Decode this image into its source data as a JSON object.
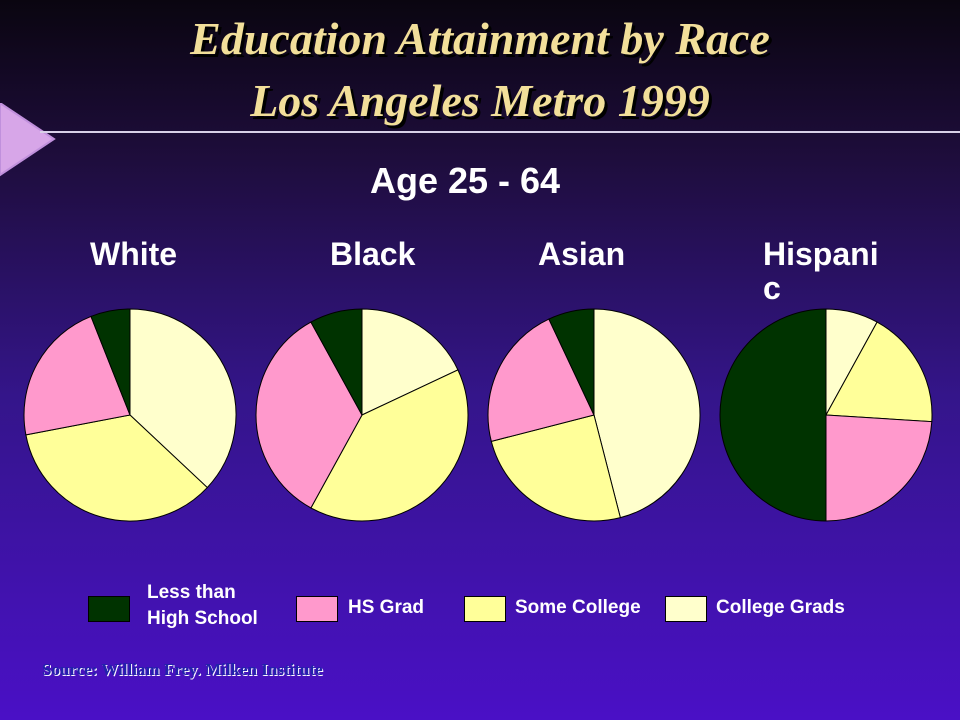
{
  "title_line1": "Education Attainment by Race",
  "title_line2": "Los Angeles Metro 1999",
  "subtitle": "Age 25 - 64",
  "source": "Source: William Frey. Milken Institute",
  "colors": {
    "less_than_hs": "#003300",
    "hs_grad": "#ff99cc",
    "some_college": "#ffff99",
    "college_grads": "#ffffcc"
  },
  "chart_data": {
    "type": "pie",
    "categories": [
      "Less than High School",
      "HS Grad",
      "Some College",
      "College Grads"
    ],
    "series": [
      {
        "name": "White",
        "values": [
          6,
          22,
          35,
          37
        ]
      },
      {
        "name": "Black",
        "values": [
          8,
          34,
          40,
          18
        ]
      },
      {
        "name": "Asian",
        "values": [
          7,
          22,
          25,
          46
        ]
      },
      {
        "name": "Hispanic",
        "values": [
          50,
          24,
          18,
          8
        ]
      }
    ],
    "labels": [
      "White",
      "Black",
      "Asian",
      "Hispani\nc"
    ],
    "legend": [
      {
        "label": "Less than\nHigh School",
        "key": "less_than_hs"
      },
      {
        "label": "HS Grad",
        "key": "hs_grad"
      },
      {
        "label": "Some College",
        "key": "some_college"
      },
      {
        "label": "College Grads",
        "key": "college_grads"
      }
    ],
    "legend_placement": "bottom"
  }
}
